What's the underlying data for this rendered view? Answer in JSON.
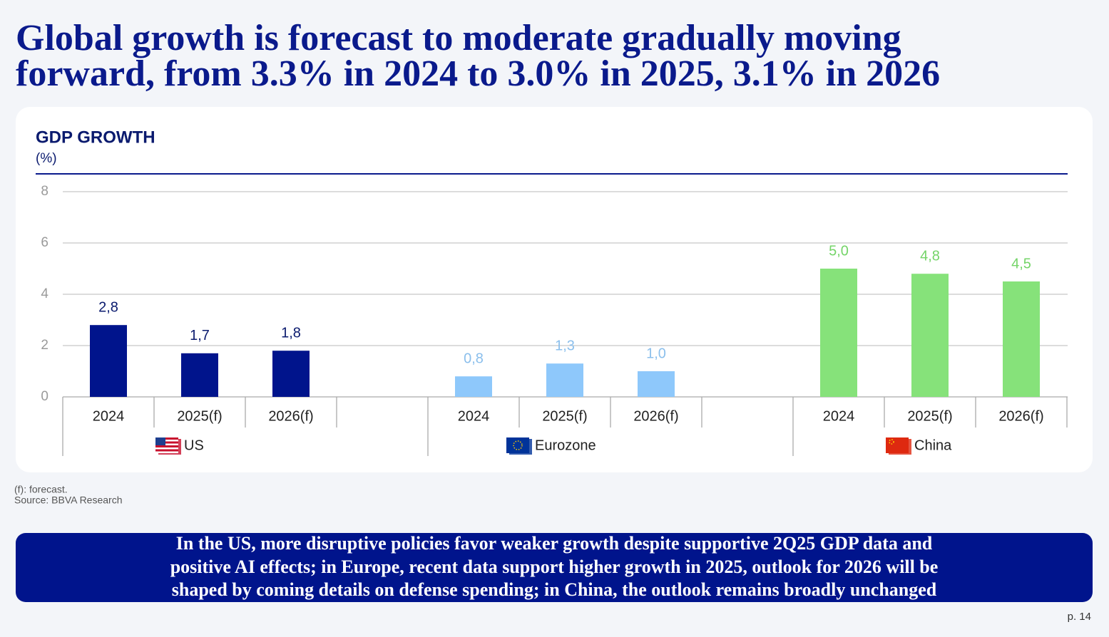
{
  "title": [
    "Global growth is forecast to moderate gradually moving",
    "forward, from 3.3% in 2024 to 3.0% in 2025, 3.1% in 2026"
  ],
  "chart_data": {
    "type": "bar",
    "title": "GDP GROWTH",
    "subtitle": "(%)",
    "categories": [
      "2024",
      "2025(f)",
      "2026(f)"
    ],
    "series": [
      {
        "name": "US",
        "color": "#00148c",
        "label_color": "#0a1a6e",
        "values": [
          2.8,
          1.7,
          1.8
        ],
        "value_labels": [
          "2,8",
          "1,7",
          "1,8"
        ]
      },
      {
        "name": "Eurozone",
        "color": "#8ec8fb",
        "label_color": "#8bbfec",
        "values": [
          0.8,
          1.3,
          1.0
        ],
        "value_labels": [
          "0,8",
          "1,3",
          "1,0"
        ]
      },
      {
        "name": "China",
        "color": "#86e27a",
        "label_color": "#74d468",
        "values": [
          5.0,
          4.8,
          4.5
        ],
        "value_labels": [
          "5,0",
          "4,8",
          "4,5"
        ]
      }
    ],
    "ylim": [
      0,
      8
    ],
    "yticks": [
      0,
      2,
      4,
      6,
      8
    ],
    "grid": true
  },
  "notes": [
    "(f): forecast.",
    "Source: BBVA Research"
  ],
  "callout": [
    "In the US, more disruptive policies favor weaker growth despite supportive 2Q25 GDP data and",
    "positive AI effects; in Europe, recent data support higher growth in 2025, outlook for 2026 will be",
    "shaped by coming details on defense spending; in China, the outlook remains broadly unchanged"
  ],
  "page": "p. 14"
}
